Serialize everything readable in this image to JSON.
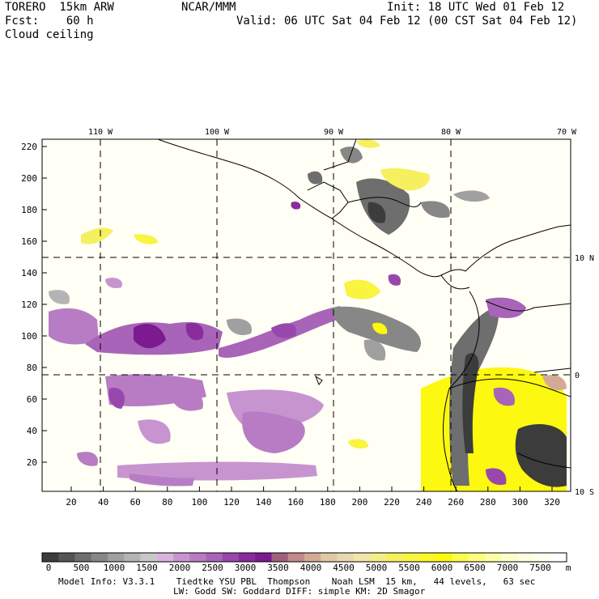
{
  "header": {
    "model": "TORERO  15km ARW",
    "org": "NCAR/MMM",
    "init": "Init: 18 UTC Wed 01 Feb 12",
    "fcst": "Fcst:    60 h",
    "valid": "Valid: 06 UTC Sat 04 Feb 12 (00 CST Sat 04 Feb 12)",
    "field": "Cloud ceiling"
  },
  "map": {
    "x_axis": {
      "ticks": [
        "20",
        "40",
        "60",
        "80",
        "100",
        "120",
        "140",
        "160",
        "180",
        "200",
        "220",
        "240",
        "260",
        "280",
        "300",
        "320"
      ]
    },
    "y_axis": {
      "ticks": [
        "220",
        "200",
        "180",
        "160",
        "140",
        "120",
        "100",
        "80",
        "60",
        "40",
        "20"
      ]
    },
    "lon_labels": [
      "110 W",
      "100 W",
      "90 W",
      "80 W",
      "70 W"
    ],
    "lat_labels": [
      "10 N",
      "0",
      "10 S"
    ]
  },
  "colorbar": {
    "labels": [
      "0",
      "500",
      "1000",
      "1500",
      "2000",
      "2500",
      "3000",
      "3500",
      "4000",
      "4500",
      "5000",
      "5500",
      "6000",
      "6500",
      "7000",
      "7500"
    ],
    "unit": "m",
    "colors": [
      "#3c3c3c",
      "#555555",
      "#6e6e6e",
      "#878787",
      "#a0a0a0",
      "#b4b4b4",
      "#c8c8c8",
      "#d8b4dc",
      "#c894d0",
      "#b87cc4",
      "#a864b8",
      "#9848ac",
      "#8a2c9e",
      "#7c1a90",
      "#a0607a",
      "#c08a8a",
      "#d4aa96",
      "#e0c8a4",
      "#e8d8b0",
      "#f0e6a8",
      "#f4ee88",
      "#f6f060",
      "#f8f440",
      "#faf628",
      "#fcf810",
      "#fafa50",
      "#fcfc80",
      "#fdfda8",
      "#fefec8",
      "#fefee0",
      "#ffffee",
      "#ffffff"
    ]
  },
  "footer": {
    "line1": "Model Info: V3.3.1    Tiedtke YSU PBL  Thompson    Noah LSM  15 km,   44 levels,   63 sec",
    "line2": "LW: Godd SW: Goddard DIFF: simple KM: 2D Smagor"
  }
}
